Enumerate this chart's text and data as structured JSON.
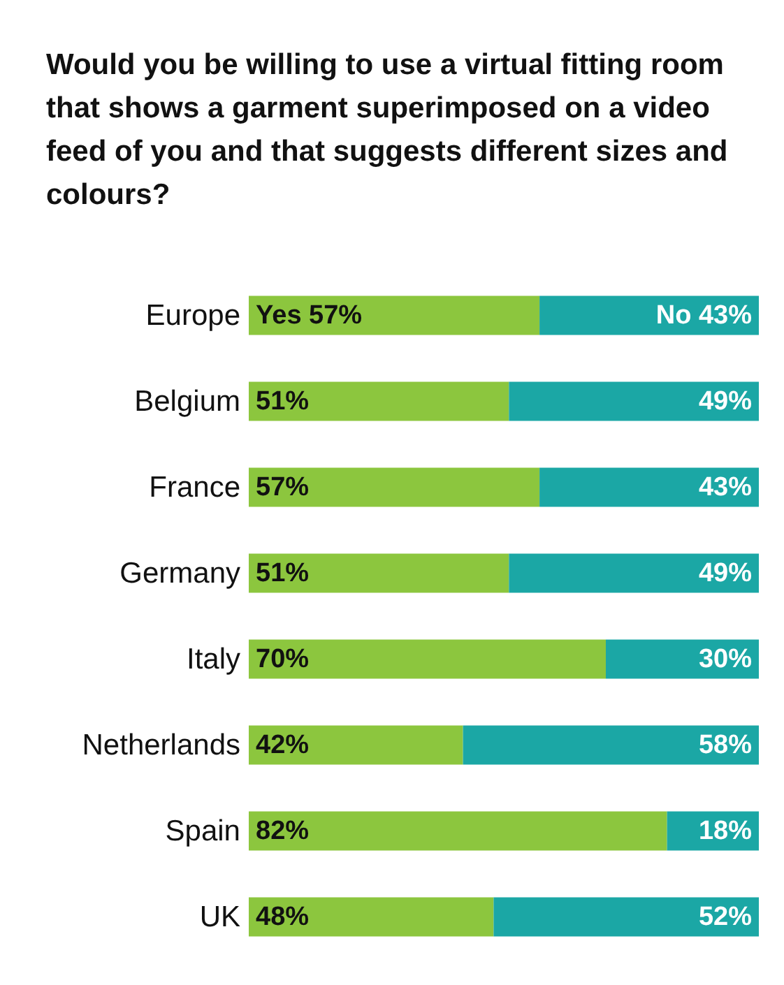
{
  "chart_data": {
    "type": "bar",
    "orientation": "horizontal",
    "stacked": true,
    "title": "Would you be willing to use a virtual fitting room that shows a garment superimposed on a video feed of you and that suggests different sizes and colours?",
    "categories": [
      "Europe",
      "Belgium",
      "France",
      "Germany",
      "Italy",
      "Netherlands",
      "Spain",
      "UK"
    ],
    "xlim": [
      0,
      100
    ],
    "tick_labels": "y",
    "series": [
      {
        "color": "#8cc63e",
        "values": [
          57,
          51,
          57,
          51,
          70,
          42,
          82,
          48
        ],
        "value_labels": [
          "Yes 57%",
          "51%",
          "57%",
          "51%",
          "70%",
          "42%",
          "82%",
          "48%"
        ]
      },
      {
        "color": "#1ba7a5",
        "values": [
          43,
          49,
          43,
          49,
          30,
          58,
          18,
          52
        ],
        "value_labels": [
          "No 43%",
          "49%",
          "43%",
          "49%",
          "30%",
          "58%",
          "18%",
          "52%"
        ]
      }
    ]
  }
}
